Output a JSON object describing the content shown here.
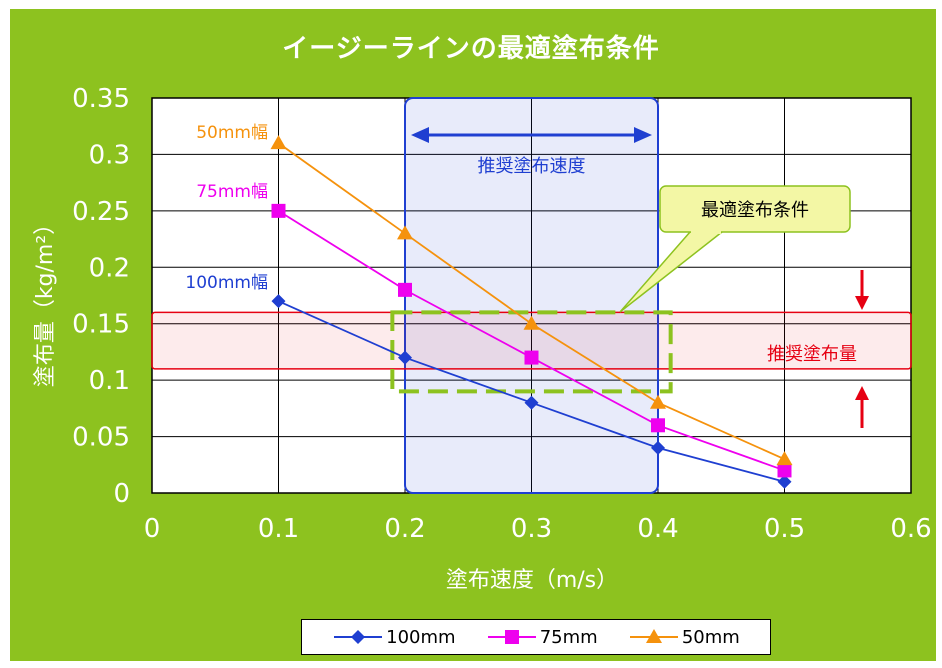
{
  "title": "イージーラインの最適塗布条件",
  "chart_data": {
    "type": "line",
    "title": "イージーラインの最適塗布条件",
    "xlabel": "塗布速度（m/s）",
    "ylabel": "塗布量（kg/m²）",
    "xlim": [
      0,
      0.6
    ],
    "ylim": [
      0,
      0.35
    ],
    "x_ticks": [
      "0",
      "0.1",
      "0.2",
      "0.3",
      "0.4",
      "0.5",
      "0.6"
    ],
    "y_ticks": [
      "0",
      "0.05",
      "0.1",
      "0.15",
      "0.2",
      "0.25",
      "0.3",
      "0.35"
    ],
    "grid": true,
    "legend_position": "bottom",
    "series": [
      {
        "name": "100mm",
        "label": "100mm幅",
        "color": "#1f3fd1",
        "marker": "diamond",
        "x": [
          0.1,
          0.2,
          0.3,
          0.4,
          0.5
        ],
        "y": [
          0.17,
          0.12,
          0.08,
          0.04,
          0.01
        ]
      },
      {
        "name": "75mm",
        "label": "75mm幅",
        "color": "#ee00ee",
        "marker": "square",
        "x": [
          0.1,
          0.2,
          0.3,
          0.4,
          0.5
        ],
        "y": [
          0.25,
          0.18,
          0.12,
          0.06,
          0.02
        ]
      },
      {
        "name": "50mm",
        "label": "50mm幅",
        "color": "#f5920d",
        "marker": "triangle",
        "x": [
          0.1,
          0.2,
          0.3,
          0.4,
          0.5
        ],
        "y": [
          0.31,
          0.23,
          0.15,
          0.08,
          0.03
        ]
      }
    ],
    "annotations": {
      "recommended_speed": {
        "text": "推奨塗布速度",
        "x_range": [
          0.2,
          0.4
        ],
        "color": "#1f3fd1"
      },
      "recommended_amount": {
        "text": "推奨塗布量",
        "y_range": [
          0.11,
          0.16
        ],
        "color": "#e60012"
      },
      "optimal": {
        "text": "最適塗布条件",
        "x_range": [
          0.19,
          0.41
        ],
        "y_range": [
          0.09,
          0.16
        ],
        "color": "#8dc21f"
      }
    }
  }
}
